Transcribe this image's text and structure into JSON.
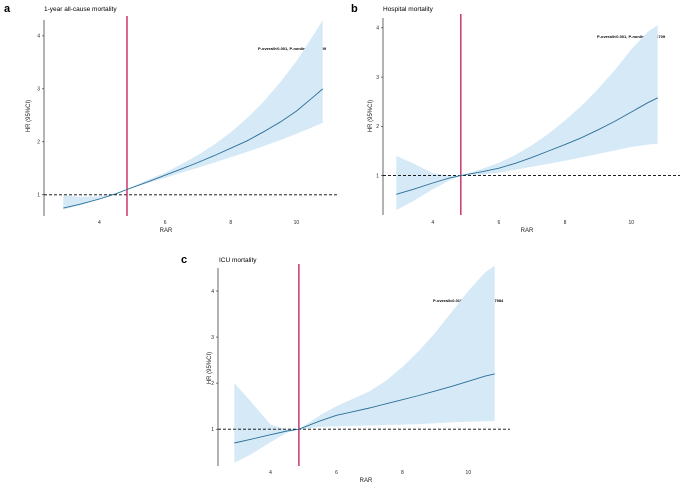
{
  "chart_data": [
    {
      "type": "line",
      "panel": "a",
      "title": "1-year all-cause mortality",
      "annotation": "P-overall<0.001, P-nonlinear=0.1659",
      "xlabel": "RAR",
      "ylabel": "HR (95%CI)",
      "xlim": [
        2.8,
        10.9
      ],
      "ylim": [
        0.6,
        4.3
      ],
      "xticks": [
        4,
        6,
        8,
        10
      ],
      "yticks": [
        1,
        2,
        3,
        4
      ],
      "ref_x": 4.84,
      "ref_y": 1,
      "colors": {
        "line": "#2a6f97",
        "ci": "#d6e9f7",
        "ref_vline": "#c2185b",
        "ref_hline": "#000000"
      },
      "x": [
        2.9,
        3.4,
        4.0,
        4.5,
        4.84,
        5.5,
        6.0,
        6.5,
        7.0,
        7.5,
        8.0,
        8.5,
        9.0,
        9.5,
        10.0,
        10.5,
        10.8
      ],
      "hr": [
        0.75,
        0.82,
        0.92,
        1.02,
        1.1,
        1.25,
        1.37,
        1.49,
        1.61,
        1.74,
        1.88,
        2.02,
        2.19,
        2.37,
        2.58,
        2.84,
        3.0
      ],
      "lower": [
        0.72,
        0.8,
        0.91,
        1.01,
        1.1,
        1.23,
        1.32,
        1.42,
        1.51,
        1.61,
        1.71,
        1.81,
        1.92,
        2.03,
        2.15,
        2.28,
        2.36
      ],
      "upper": [
        0.99,
        0.96,
        0.97,
        1.03,
        1.11,
        1.29,
        1.42,
        1.58,
        1.75,
        1.95,
        2.18,
        2.45,
        2.76,
        3.12,
        3.52,
        4.0,
        4.3
      ]
    },
    {
      "type": "line",
      "panel": "b",
      "title": "Hospital mortality",
      "annotation": "P-overall<0.001, P-nonlinear=0.6709",
      "xlabel": "RAR",
      "ylabel": "HR (95%CI)",
      "xlim": [
        2.8,
        10.9
      ],
      "ylim": [
        0.2,
        4.2
      ],
      "xticks": [
        4,
        6,
        8,
        10
      ],
      "yticks": [
        1,
        2,
        3,
        4
      ],
      "ref_x": 4.85,
      "ref_y": 1,
      "colors": {
        "line": "#2a6f97",
        "ci": "#d6e9f7",
        "ref_vline": "#c2185b",
        "ref_hline": "#000000"
      },
      "x": [
        2.9,
        3.4,
        4.0,
        4.5,
        4.85,
        5.5,
        6.0,
        6.5,
        7.0,
        7.5,
        8.0,
        8.5,
        9.0,
        9.5,
        10.0,
        10.5,
        10.8
      ],
      "hr": [
        0.62,
        0.72,
        0.85,
        0.95,
        1.0,
        1.08,
        1.15,
        1.25,
        1.37,
        1.5,
        1.63,
        1.77,
        1.93,
        2.1,
        2.29,
        2.48,
        2.58
      ],
      "lower": [
        0.3,
        0.48,
        0.72,
        0.9,
        1.0,
        1.02,
        1.06,
        1.12,
        1.18,
        1.24,
        1.3,
        1.37,
        1.44,
        1.51,
        1.58,
        1.63,
        1.65
      ],
      "upper": [
        1.4,
        1.25,
        1.05,
        1.0,
        1.0,
        1.14,
        1.26,
        1.42,
        1.62,
        1.85,
        2.12,
        2.42,
        2.76,
        3.14,
        3.56,
        3.92,
        4.05
      ]
    },
    {
      "type": "line",
      "panel": "c",
      "title": "ICU mortality",
      "annotation": "P-overall=0.0165, P-nonlinear=0.7984",
      "xlabel": "RAR",
      "ylabel": "HR (95%CI)",
      "xlim": [
        2.8,
        10.9
      ],
      "ylim": [
        0.2,
        4.5
      ],
      "xticks": [
        4,
        6,
        8,
        10
      ],
      "yticks": [
        1,
        2,
        3,
        4
      ],
      "ref_x": 4.86,
      "ref_y": 1,
      "colors": {
        "line": "#2a6f97",
        "ci": "#d6e9f7",
        "ref_vline": "#c2185b",
        "ref_hline": "#000000"
      },
      "x": [
        2.9,
        3.4,
        4.0,
        4.5,
        4.86,
        5.5,
        6.0,
        6.5,
        7.0,
        7.5,
        8.0,
        8.5,
        9.0,
        9.5,
        10.0,
        10.5,
        10.8
      ],
      "hr": [
        0.7,
        0.78,
        0.88,
        0.96,
        1.0,
        1.18,
        1.3,
        1.38,
        1.46,
        1.55,
        1.64,
        1.73,
        1.83,
        1.93,
        2.04,
        2.15,
        2.2
      ],
      "lower": [
        0.27,
        0.45,
        0.72,
        0.92,
        1.0,
        1.05,
        1.06,
        1.07,
        1.08,
        1.09,
        1.1,
        1.11,
        1.13,
        1.15,
        1.16,
        1.17,
        1.18
      ],
      "upper": [
        2.0,
        1.6,
        1.1,
        1.0,
        1.0,
        1.3,
        1.5,
        1.66,
        1.82,
        2.05,
        2.35,
        2.7,
        3.1,
        3.55,
        4.0,
        4.4,
        4.55
      ]
    }
  ]
}
